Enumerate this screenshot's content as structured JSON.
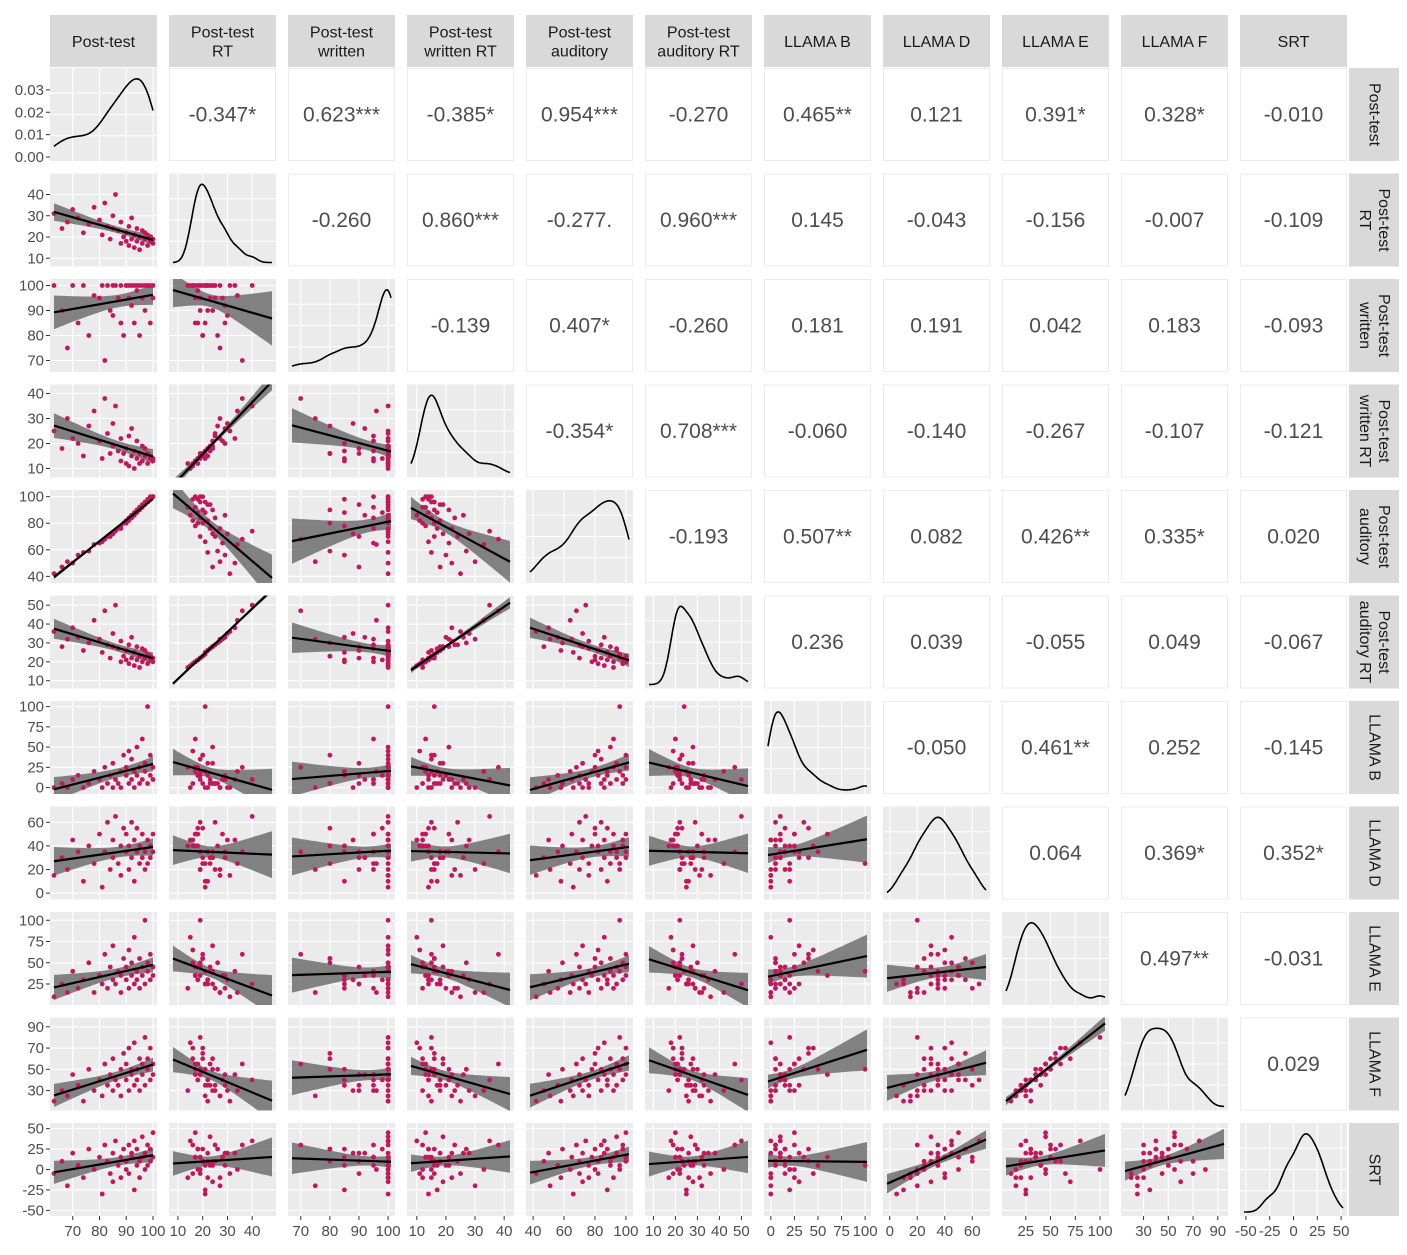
{
  "chart_data": {
    "type": "scatter",
    "variables": [
      {
        "label": "Post-test",
        "col_strip": [
          "Post-test"
        ],
        "row_strip": [
          "Post-test"
        ],
        "range": [
          63,
          100
        ],
        "ticks": [
          70,
          80,
          90,
          100
        ],
        "tick_labels": [
          "70",
          "80",
          "90",
          "100"
        ]
      },
      {
        "label": "Post-test RT",
        "col_strip": [
          "Post-test",
          "RT"
        ],
        "row_strip": [
          "Post-test",
          "RT"
        ],
        "range": [
          8,
          48
        ],
        "ticks": [
          10,
          20,
          30,
          40
        ],
        "tick_labels": [
          "10",
          "20",
          "30",
          "40"
        ]
      },
      {
        "label": "Post-test written",
        "col_strip": [
          "Post-test",
          "written"
        ],
        "row_strip": [
          "Post-test",
          "written"
        ],
        "range": [
          67,
          101
        ],
        "ticks": [
          70,
          80,
          90,
          100
        ],
        "tick_labels": [
          "70",
          "80",
          "90",
          "100"
        ]
      },
      {
        "label": "Post-test written RT",
        "col_strip": [
          "Post-test",
          "written RT"
        ],
        "row_strip": [
          "Post-test",
          "written RT"
        ],
        "range": [
          8,
          42
        ],
        "ticks": [
          10,
          20,
          30,
          40
        ],
        "tick_labels": [
          "10",
          "20",
          "30",
          "40"
        ]
      },
      {
        "label": "Post-test auditory",
        "col_strip": [
          "Post-test",
          "auditory"
        ],
        "row_strip": [
          "Post-test",
          "auditory"
        ],
        "range": [
          38,
          102
        ],
        "ticks": [
          40,
          60,
          80,
          100
        ],
        "tick_labels": [
          "40",
          "60",
          "80",
          "100"
        ]
      },
      {
        "label": "Post-test auditory RT",
        "col_strip": [
          "Post-test",
          "auditory RT"
        ],
        "row_strip": [
          "Post-test",
          "auditory RT"
        ],
        "range": [
          8,
          53
        ],
        "ticks": [
          10,
          20,
          30,
          40,
          50
        ],
        "tick_labels": [
          "10",
          "20",
          "30",
          "40",
          "50"
        ]
      },
      {
        "label": "LLAMA B",
        "col_strip": [
          "LLAMA B"
        ],
        "row_strip": [
          "LLAMA B"
        ],
        "range": [
          -3,
          102
        ],
        "ticks": [
          0,
          25,
          50,
          75,
          100
        ],
        "tick_labels": [
          "0",
          "25",
          "50",
          "75",
          "100"
        ]
      },
      {
        "label": "LLAMA D",
        "col_strip": [
          "LLAMA D"
        ],
        "row_strip": [
          "LLAMA D"
        ],
        "range": [
          -2,
          70
        ],
        "ticks": [
          0,
          20,
          40,
          60
        ],
        "tick_labels": [
          "0",
          "20",
          "40",
          "60"
        ]
      },
      {
        "label": "LLAMA E",
        "col_strip": [
          "LLAMA E"
        ],
        "row_strip": [
          "LLAMA E"
        ],
        "range": [
          5,
          105
        ],
        "ticks": [
          25,
          50,
          75,
          100
        ],
        "tick_labels": [
          "25",
          "50",
          "75",
          "100"
        ]
      },
      {
        "label": "LLAMA F",
        "col_strip": [
          "LLAMA F"
        ],
        "row_strip": [
          "LLAMA F"
        ],
        "range": [
          15,
          95
        ],
        "ticks": [
          30,
          50,
          70,
          90
        ],
        "tick_labels": [
          "30",
          "50",
          "70",
          "90"
        ]
      },
      {
        "label": "SRT",
        "col_strip": [
          "SRT"
        ],
        "row_strip": [
          "SRT"
        ],
        "range": [
          -52,
          52
        ],
        "ticks": [
          -50,
          -25,
          0,
          25,
          50
        ],
        "tick_labels": [
          "-50",
          "-25",
          "0",
          "25",
          "50"
        ]
      }
    ],
    "diag_density_ticks": [
      0.0,
      0.01,
      0.02,
      0.03
    ],
    "diag_density_tick_labels": [
      "0.00",
      "0.01",
      "0.02",
      "0.03"
    ],
    "diag_density_ylim": [
      0,
      0.038
    ],
    "correlations": [
      [
        null,
        "-0.347*",
        "0.623***",
        "-0.385*",
        "0.954***",
        "-0.270",
        "0.465**",
        "0.121",
        "0.391*",
        "0.328*",
        "-0.010"
      ],
      [
        null,
        null,
        "-0.260",
        "0.860***",
        "-0.277.",
        "0.960***",
        "0.145",
        "-0.043",
        "-0.156",
        "-0.007",
        "-0.109"
      ],
      [
        null,
        null,
        null,
        "-0.139",
        "0.407*",
        "-0.260",
        "0.181",
        "0.191",
        "0.042",
        "0.183",
        "-0.093"
      ],
      [
        null,
        null,
        null,
        null,
        "-0.354*",
        "0.708***",
        "-0.060",
        "-0.140",
        "-0.267",
        "-0.107",
        "-0.121"
      ],
      [
        null,
        null,
        null,
        null,
        null,
        "-0.193",
        "0.507**",
        "0.082",
        "0.426**",
        "0.335*",
        "0.020"
      ],
      [
        null,
        null,
        null,
        null,
        null,
        null,
        "0.236",
        "0.039",
        "-0.055",
        "0.049",
        "-0.067"
      ],
      [
        null,
        null,
        null,
        null,
        null,
        null,
        null,
        "-0.050",
        "0.461**",
        "0.252",
        "-0.145"
      ],
      [
        null,
        null,
        null,
        null,
        null,
        null,
        null,
        null,
        "0.064",
        "0.369*",
        "0.352*"
      ],
      [
        null,
        null,
        null,
        null,
        null,
        null,
        null,
        null,
        null,
        "0.497**",
        "-0.031"
      ],
      [
        null,
        null,
        null,
        null,
        null,
        null,
        null,
        null,
        null,
        null,
        "0.029"
      ],
      [
        null,
        null,
        null,
        null,
        null,
        null,
        null,
        null,
        null,
        null,
        null
      ]
    ],
    "grid": true,
    "colors": {
      "points": "#c2185b",
      "fit_line": "#000000",
      "ribbon": "#6e6e6e",
      "panel_bg": "#ebebeb",
      "grid": "#ffffff",
      "strip_bg": "#d9d9d9",
      "corr_text": "#4d4d4d"
    },
    "observations": {
      "count": 42,
      "Post-test": [
        63,
        66,
        68,
        70,
        72,
        74,
        76,
        78,
        80,
        81,
        82,
        83,
        84,
        85,
        85,
        86,
        87,
        88,
        88,
        89,
        90,
        90,
        91,
        91,
        92,
        92,
        93,
        93,
        94,
        94,
        95,
        95,
        96,
        96,
        97,
        97,
        98,
        98,
        99,
        99,
        100,
        100
      ],
      "Post-test RT": [
        31,
        24,
        27,
        33,
        29,
        22,
        26,
        34,
        28,
        21,
        36,
        25,
        19,
        30,
        24,
        40,
        23,
        17,
        27,
        20,
        22,
        18,
        25,
        16,
        29,
        19,
        21,
        15,
        24,
        18,
        20,
        14,
        23,
        17,
        19,
        22,
        16,
        21,
        18,
        20,
        17,
        19
      ],
      "Post-test written": [
        100,
        90,
        75,
        100,
        85,
        100,
        80,
        96,
        95,
        100,
        70,
        100,
        90,
        88,
        100,
        100,
        95,
        85,
        100,
        80,
        100,
        100,
        95,
        100,
        92,
        100,
        85,
        100,
        100,
        98,
        80,
        100,
        100,
        95,
        100,
        90,
        100,
        100,
        85,
        100,
        100,
        95
      ],
      "Post-test written RT": [
        25,
        18,
        30,
        22,
        20,
        15,
        27,
        33,
        21,
        14,
        38,
        24,
        16,
        28,
        19,
        35,
        17,
        13,
        22,
        16,
        18,
        12,
        23,
        11,
        26,
        15,
        17,
        10,
        21,
        14,
        16,
        12,
        19,
        13,
        15,
        18,
        12,
        16,
        14,
        15,
        13,
        14
      ],
      "Post-test auditory": [
        42,
        47,
        51,
        50,
        56,
        58,
        59,
        64,
        65,
        66,
        68,
        70,
        70,
        72,
        72,
        74,
        76,
        78,
        76,
        80,
        82,
        80,
        84,
        82,
        86,
        84,
        88,
        86,
        90,
        88,
        90,
        92,
        94,
        92,
        96,
        94,
        98,
        96,
        98,
        100,
        100,
        100
      ],
      "Post-test auditory RT": [
        36,
        28,
        32,
        38,
        33,
        26,
        30,
        42,
        32,
        25,
        47,
        29,
        22,
        35,
        28,
        50,
        27,
        20,
        31,
        23,
        26,
        21,
        29,
        19,
        33,
        22,
        25,
        18,
        28,
        21,
        23,
        17,
        27,
        20,
        22,
        26,
        19,
        24,
        21,
        23,
        20,
        22
      ],
      "LLAMA B": [
        0,
        5,
        0,
        10,
        15,
        0,
        5,
        20,
        10,
        0,
        25,
        5,
        15,
        0,
        30,
        10,
        5,
        20,
        0,
        40,
        15,
        25,
        5,
        45,
        10,
        35,
        20,
        0,
        50,
        15,
        5,
        25,
        10,
        60,
        20,
        30,
        5,
        100,
        15,
        40,
        25,
        10
      ],
      "LLAMA D": [
        15,
        30,
        20,
        45,
        35,
        10,
        40,
        25,
        50,
        5,
        35,
        60,
        20,
        45,
        30,
        65,
        25,
        40,
        15,
        55,
        35,
        50,
        20,
        40,
        30,
        60,
        10,
        45,
        35,
        55,
        25,
        40,
        30,
        50,
        20,
        35,
        45,
        25,
        40,
        30,
        50,
        35
      ],
      "LLAMA E": [
        10,
        25,
        15,
        40,
        20,
        30,
        50,
        15,
        35,
        25,
        60,
        20,
        45,
        30,
        70,
        25,
        40,
        35,
        15,
        55,
        30,
        45,
        20,
        65,
        35,
        50,
        25,
        80,
        40,
        30,
        55,
        20,
        45,
        35,
        100,
        25,
        50,
        40,
        30,
        60,
        45,
        35
      ],
      "LLAMA F": [
        20,
        30,
        25,
        45,
        35,
        20,
        50,
        30,
        40,
        25,
        55,
        35,
        45,
        30,
        60,
        40,
        35,
        50,
        25,
        65,
        40,
        55,
        30,
        70,
        45,
        50,
        35,
        75,
        50,
        40,
        60,
        30,
        55,
        45,
        80,
        35,
        60,
        50,
        40,
        70,
        55,
        45
      ],
      "SRT": [
        -5,
        10,
        -20,
        20,
        5,
        -10,
        25,
        0,
        15,
        -30,
        30,
        10,
        -5,
        20,
        -15,
        35,
        5,
        15,
        -10,
        25,
        10,
        0,
        30,
        -5,
        20,
        15,
        -25,
        35,
        5,
        25,
        10,
        -10,
        40,
        15,
        0,
        20,
        30,
        5,
        25,
        10,
        45,
        15
      ]
    }
  }
}
